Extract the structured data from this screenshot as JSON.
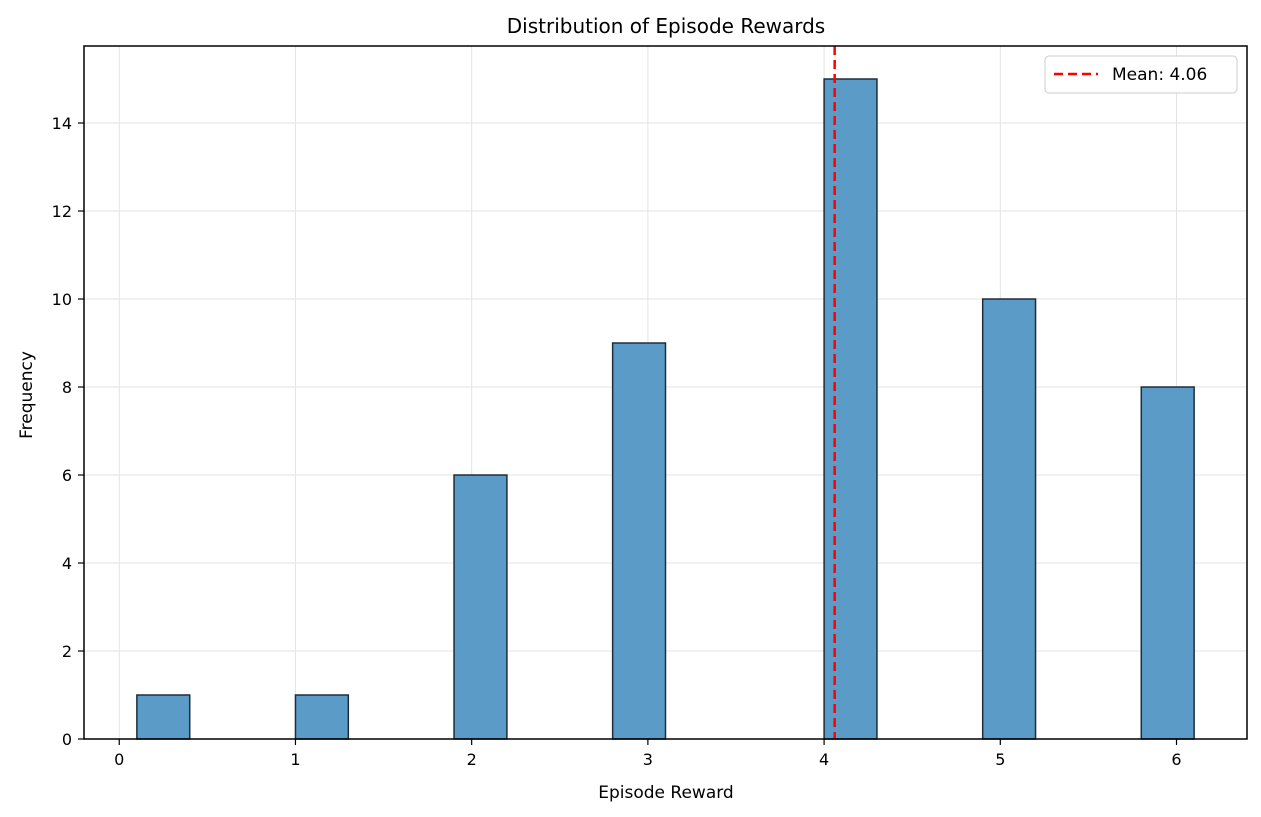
{
  "chart_data": {
    "type": "bar",
    "title": "Distribution of Episode Rewards",
    "xlabel": "Episode Reward",
    "ylabel": "Frequency",
    "xlim": [
      -0.2,
      6.4
    ],
    "ylim": [
      0,
      15.75
    ],
    "xticks": [
      "0",
      "1",
      "2",
      "3",
      "4",
      "5",
      "6"
    ],
    "yticks": [
      "0",
      "2",
      "4",
      "6",
      "8",
      "10",
      "12",
      "14"
    ],
    "grid": true,
    "legend_position": "top-right",
    "bins": [
      {
        "start": 0.1,
        "end": 0.4,
        "value": 1
      },
      {
        "start": 1.0,
        "end": 1.3,
        "value": 1
      },
      {
        "start": 1.9,
        "end": 2.2,
        "value": 6
      },
      {
        "start": 2.8,
        "end": 3.1,
        "value": 9
      },
      {
        "start": 4.0,
        "end": 4.3,
        "value": 15
      },
      {
        "start": 4.9,
        "end": 5.2,
        "value": 10
      },
      {
        "start": 5.8,
        "end": 6.1,
        "value": 8
      }
    ],
    "mean_line": {
      "value": 4.06,
      "label": "Mean: 4.06",
      "color": "#ff0000"
    },
    "bar_color": "#5b9bc8",
    "bar_edge_color": "#1f2d3a"
  }
}
